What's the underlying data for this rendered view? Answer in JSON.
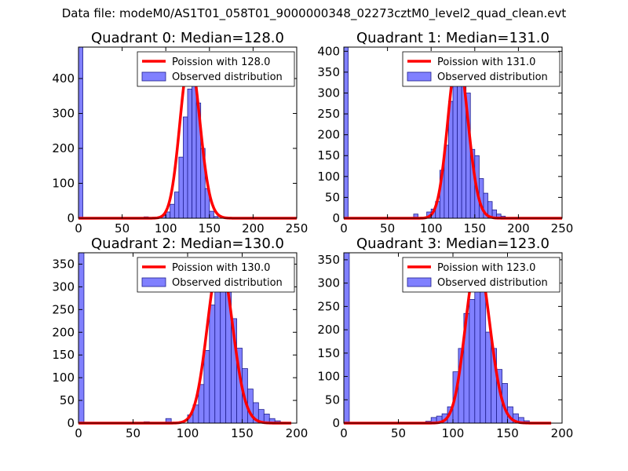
{
  "figure": {
    "suptitle": "Data file: modeM0/AS1T01_058T01_9000000348_02273cztM0_level2_quad_clean.evt"
  },
  "style": {
    "bar_fill": "#8080ff",
    "bar_stroke": "#1f1f8f",
    "curve_color": "#ff0000",
    "axis_color": "#000000"
  },
  "chart_data": [
    {
      "type": "bar",
      "title": "Quadrant 0: Median=128.0",
      "xlim": [
        0,
        250
      ],
      "ylim": [
        0,
        490
      ],
      "xticks": [
        0,
        50,
        100,
        150,
        200,
        250
      ],
      "yticks": [
        0,
        100,
        200,
        300,
        400
      ],
      "bin_width": 5,
      "legend": {
        "position": "top-right",
        "curve_label": "Poission with 128.0",
        "hist_label": "Observed distribution"
      },
      "bins": [
        [
          0,
          490
        ],
        [
          75,
          4
        ],
        [
          95,
          8
        ],
        [
          100,
          18
        ],
        [
          105,
          40
        ],
        [
          110,
          75
        ],
        [
          115,
          175
        ],
        [
          120,
          290
        ],
        [
          125,
          370
        ],
        [
          130,
          440
        ],
        [
          135,
          330
        ],
        [
          140,
          200
        ],
        [
          145,
          85
        ],
        [
          150,
          20
        ],
        [
          155,
          5
        ]
      ],
      "poisson": {
        "mean": 128.0,
        "scale": 460,
        "x_range": [
          0,
          250
        ]
      }
    },
    {
      "type": "bar",
      "title": "Quadrant 1: Median=131.0",
      "xlim": [
        0,
        250
      ],
      "ylim": [
        0,
        410
      ],
      "xticks": [
        0,
        50,
        100,
        150,
        200,
        250
      ],
      "yticks": [
        0,
        50,
        100,
        150,
        200,
        250,
        300,
        350,
        400
      ],
      "bin_width": 5,
      "legend": {
        "position": "top-right",
        "curve_label": "Poission with 131.0",
        "hist_label": "Observed distribution"
      },
      "bins": [
        [
          0,
          410
        ],
        [
          80,
          10
        ],
        [
          95,
          15
        ],
        [
          100,
          22
        ],
        [
          105,
          40
        ],
        [
          110,
          115
        ],
        [
          115,
          175
        ],
        [
          120,
          280
        ],
        [
          125,
          370
        ],
        [
          130,
          395
        ],
        [
          135,
          350
        ],
        [
          140,
          300
        ],
        [
          145,
          165
        ],
        [
          150,
          150
        ],
        [
          155,
          95
        ],
        [
          160,
          60
        ],
        [
          165,
          40
        ],
        [
          170,
          20
        ],
        [
          175,
          10
        ],
        [
          180,
          5
        ]
      ],
      "poisson": {
        "mean": 131.0,
        "scale": 390,
        "x_range": [
          0,
          250
        ]
      }
    },
    {
      "type": "bar",
      "title": "Quadrant 2: Median=130.0",
      "xlim": [
        0,
        200
      ],
      "ylim": [
        0,
        375
      ],
      "xticks": [
        0,
        50,
        100,
        150,
        200
      ],
      "yticks": [
        0,
        50,
        100,
        150,
        200,
        250,
        300,
        350
      ],
      "bin_width": 5,
      "legend": {
        "position": "top-right",
        "curve_label": "Poission with 130.0",
        "hist_label": "Observed distribution"
      },
      "bins": [
        [
          0,
          375
        ],
        [
          60,
          3
        ],
        [
          80,
          10
        ],
        [
          100,
          18
        ],
        [
          105,
          40
        ],
        [
          110,
          85
        ],
        [
          115,
          160
        ],
        [
          120,
          260
        ],
        [
          125,
          330
        ],
        [
          130,
          350
        ],
        [
          135,
          340
        ],
        [
          140,
          230
        ],
        [
          145,
          165
        ],
        [
          150,
          120
        ],
        [
          155,
          75
        ],
        [
          160,
          45
        ],
        [
          165,
          30
        ],
        [
          170,
          20
        ],
        [
          175,
          10
        ],
        [
          180,
          5
        ],
        [
          185,
          2
        ]
      ],
      "poisson": {
        "mean": 130.0,
        "scale": 360,
        "x_range": [
          0,
          195
        ]
      }
    },
    {
      "type": "bar",
      "title": "Quadrant 3: Median=123.0",
      "xlim": [
        0,
        200
      ],
      "ylim": [
        0,
        365
      ],
      "xticks": [
        0,
        50,
        100,
        150,
        200
      ],
      "yticks": [
        0,
        50,
        100,
        150,
        200,
        250,
        300,
        350
      ],
      "bin_width": 5,
      "legend": {
        "position": "top-right",
        "curve_label": "Poission with 123.0",
        "hist_label": "Observed distribution"
      },
      "bins": [
        [
          0,
          365
        ],
        [
          75,
          4
        ],
        [
          80,
          12
        ],
        [
          85,
          15
        ],
        [
          90,
          20
        ],
        [
          95,
          35
        ],
        [
          100,
          110
        ],
        [
          105,
          160
        ],
        [
          110,
          235
        ],
        [
          115,
          265
        ],
        [
          120,
          330
        ],
        [
          125,
          320
        ],
        [
          130,
          195
        ],
        [
          135,
          160
        ],
        [
          140,
          115
        ],
        [
          145,
          85
        ],
        [
          150,
          35
        ],
        [
          155,
          20
        ],
        [
          160,
          12
        ],
        [
          165,
          5
        ]
      ],
      "poisson": {
        "mean": 123.0,
        "scale": 350,
        "x_range": [
          0,
          190
        ]
      }
    }
  ]
}
